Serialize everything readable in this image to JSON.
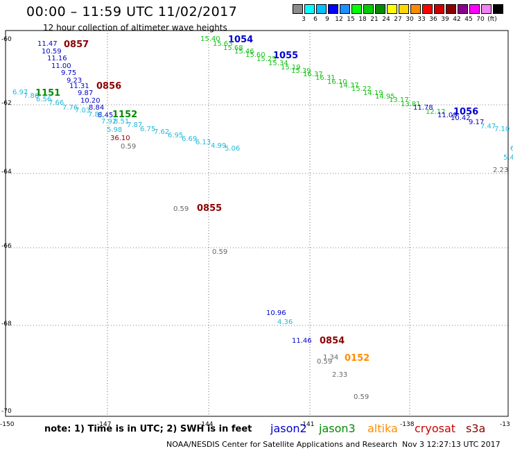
{
  "header": {
    "title": "00:00 – 11:59 UTC 11/02/2017",
    "subtitle": "12 hour collection of altimeter wave heights"
  },
  "legend": {
    "colors": [
      "#8c8c8c",
      "#00ffff",
      "#00bfff",
      "#0000ff",
      "#1e90ff",
      "#00ff00",
      "#00cd00",
      "#008b00",
      "#ffff00",
      "#ffd700",
      "#ff8c00",
      "#ff0000",
      "#cd0000",
      "#8b0000",
      "#8b008b",
      "#ff00ff",
      "#ee82ee",
      "#000000"
    ],
    "labels": [
      "3",
      "6",
      "9",
      "12",
      "15",
      "18",
      "21",
      "24",
      "27",
      "30",
      "33",
      "36",
      "39",
      "42",
      "45",
      "70",
      "(ft)"
    ]
  },
  "map": {
    "lon_ticks": [
      "-150",
      "-147",
      "-144",
      "-141",
      "-138",
      "-13"
    ],
    "lat_ticks": [
      "-60",
      "-62",
      "-64",
      "-66",
      "-68",
      "-70"
    ],
    "colors": {
      "jason2": "#0000cd",
      "jason3": "#008b00",
      "altika": "#ff8c00",
      "cryosat": "#cc0000",
      "s3a": "#8b0000",
      "gray": "#666666",
      "cyan": "#22b8d8",
      "green": "#11c311"
    },
    "passes": [
      {
        "label": "1054",
        "color": "#0000cd"
      },
      {
        "label": "1055",
        "color": "#0000cd"
      },
      {
        "label": "1056",
        "color": "#0000cd"
      },
      {
        "label": "0857",
        "color": "#8b0000"
      },
      {
        "label": "0856",
        "color": "#8b0000"
      },
      {
        "label": "0855",
        "color": "#8b0000"
      },
      {
        "label": "0854",
        "color": "#8b0000"
      },
      {
        "label": "1151",
        "color": "#008b00"
      },
      {
        "label": "1152",
        "color": "#008b00"
      },
      {
        "label": "0152",
        "color": "#ff8c00"
      }
    ],
    "observations": [
      {
        "text": "15.40",
        "color": "green"
      },
      {
        "text": "15.63",
        "color": "green"
      },
      {
        "text": "15.68",
        "color": "green"
      },
      {
        "text": "15.46",
        "color": "green"
      },
      {
        "text": "15.60",
        "color": "green"
      },
      {
        "text": "15.25",
        "color": "green"
      },
      {
        "text": "15.34",
        "color": "green"
      },
      {
        "text": "15.19",
        "color": "green"
      },
      {
        "text": "15.39",
        "color": "green"
      },
      {
        "text": "16.37",
        "color": "green"
      },
      {
        "text": "16.31",
        "color": "green"
      },
      {
        "text": "16.10",
        "color": "green"
      },
      {
        "text": "14.37",
        "color": "green"
      },
      {
        "text": "15.22",
        "color": "green"
      },
      {
        "text": "14.19",
        "color": "green"
      },
      {
        "text": "14.95",
        "color": "green"
      },
      {
        "text": "13.17",
        "color": "green"
      },
      {
        "text": "13.81",
        "color": "green"
      },
      {
        "text": "12.12",
        "color": "green"
      },
      {
        "text": "11.78",
        "color": "jason2"
      },
      {
        "text": "11.09",
        "color": "jason2"
      },
      {
        "text": "10.42",
        "color": "jason2"
      },
      {
        "text": "9.17",
        "color": "jason2"
      },
      {
        "text": "7.47",
        "color": "cyan"
      },
      {
        "text": "7.10",
        "color": "cyan"
      },
      {
        "text": "6",
        "color": "cyan"
      },
      {
        "text": "5.4",
        "color": "cyan"
      },
      {
        "text": "2.23",
        "color": "gray"
      },
      {
        "text": "11.47",
        "color": "jason2"
      },
      {
        "text": "10.59",
        "color": "jason2"
      },
      {
        "text": "11.16",
        "color": "jason2"
      },
      {
        "text": "11.00",
        "color": "jason2"
      },
      {
        "text": "9.75",
        "color": "jason2"
      },
      {
        "text": "9.23",
        "color": "jason2"
      },
      {
        "text": "11.31",
        "color": "jason2"
      },
      {
        "text": "9.87",
        "color": "jason2"
      },
      {
        "text": "10.20",
        "color": "jason2"
      },
      {
        "text": "8.84",
        "color": "jason2"
      },
      {
        "text": "8.45",
        "color": "jason2"
      },
      {
        "text": "6.97",
        "color": "cyan"
      },
      {
        "text": "7.86",
        "color": "cyan"
      },
      {
        "text": "6.56",
        "color": "cyan"
      },
      {
        "text": "7.66",
        "color": "cyan"
      },
      {
        "text": "7.76",
        "color": "cyan"
      },
      {
        "text": "7.03",
        "color": "cyan"
      },
      {
        "text": "7.81",
        "color": "cyan"
      },
      {
        "text": "7.92",
        "color": "cyan"
      },
      {
        "text": "8.51",
        "color": "cyan"
      },
      {
        "text": "7.87",
        "color": "cyan"
      },
      {
        "text": "5.98",
        "color": "cyan"
      },
      {
        "text": "6.75",
        "color": "cyan"
      },
      {
        "text": "7.62",
        "color": "cyan"
      },
      {
        "text": "6.95",
        "color": "cyan"
      },
      {
        "text": "6.69",
        "color": "cyan"
      },
      {
        "text": "6.13",
        "color": "cyan"
      },
      {
        "text": "4.99",
        "color": "cyan"
      },
      {
        "text": "5.06",
        "color": "cyan"
      },
      {
        "text": "36.10",
        "color": "s3a"
      },
      {
        "text": "0.59",
        "color": "gray"
      },
      {
        "text": "0.59",
        "color": "gray"
      },
      {
        "text": "0.59",
        "color": "gray"
      },
      {
        "text": "10.96",
        "color": "jason2"
      },
      {
        "text": "4.36",
        "color": "cyan"
      },
      {
        "text": "11.46",
        "color": "jason2"
      },
      {
        "text": "1.34",
        "color": "gray"
      },
      {
        "text": "0.59",
        "color": "gray"
      },
      {
        "text": "2.33",
        "color": "gray"
      },
      {
        "text": "0.59",
        "color": "gray"
      }
    ]
  },
  "footer": {
    "note": "note:  1) Time is in UTC;  2) SWH is in feet",
    "satellites": [
      {
        "name": "jason2",
        "color": "#0000cd"
      },
      {
        "name": "jason3",
        "color": "#008b00"
      },
      {
        "name": "altika",
        "color": "#ff8c00"
      },
      {
        "name": "cryosat",
        "color": "#cc0000"
      },
      {
        "name": "s3a",
        "color": "#8b0000"
      }
    ],
    "credit": "NOAA/NESDIS Center for Satellite Applications and Research",
    "timestamp": "Nov  3 12:27:13 UTC 2017"
  }
}
